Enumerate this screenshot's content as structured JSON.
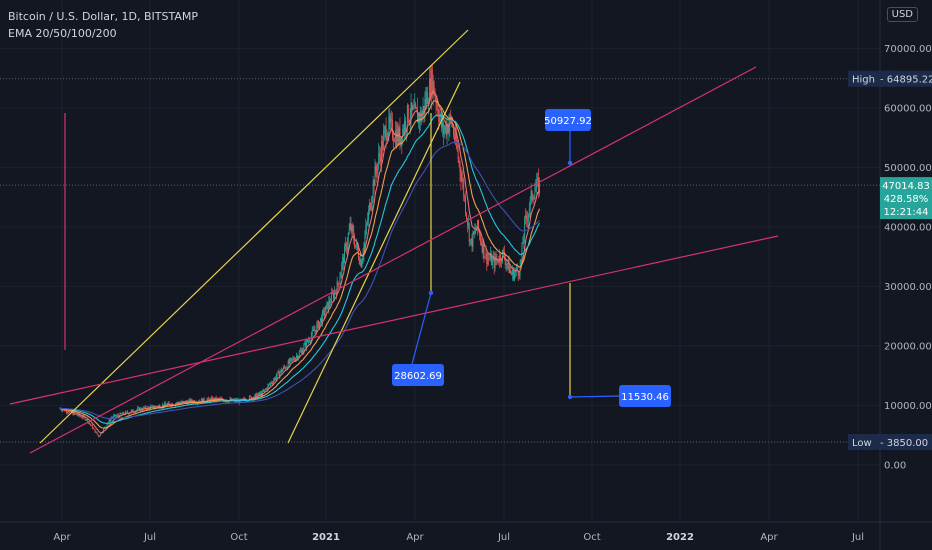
{
  "header": {
    "title": "Bitcoin / U.S. Dollar, 1D, BITSTAMP",
    "indicator": "EMA 20/50/100/200",
    "currency": "USD"
  },
  "colors": {
    "background": "#131722",
    "grid": "#1e222d",
    "text": "#b2b5be",
    "yellow": "#e6d44a",
    "pink": "#d6336c",
    "callout": "#2962ff",
    "price_badge": "#26a69a",
    "high_low_badge": "#1c2b4a",
    "candle_up": "#26a69a",
    "candle_down": "#ef5350"
  },
  "chart_data": {
    "type": "candlestick",
    "price_axis": {
      "min": -5000,
      "max": 75000,
      "ticks": [
        0,
        10000,
        20000,
        30000,
        40000,
        50000,
        60000,
        70000
      ],
      "tick_labels": [
        "0.00",
        "10000.00",
        "20000.00",
        "30000.00",
        "40000.00",
        "50000.00",
        "60000.00",
        "70000.00"
      ]
    },
    "time_axis": {
      "tick_labels": [
        "Apr",
        "Jul",
        "Oct",
        "2021",
        "Apr",
        "Jul",
        "Oct",
        "2022",
        "Apr",
        "Jul"
      ],
      "bold": [
        false,
        false,
        false,
        true,
        false,
        false,
        false,
        true,
        false,
        false
      ]
    },
    "grid": true,
    "high": {
      "label": "High",
      "value": "64895.22",
      "v": 64895
    },
    "low": {
      "label": "Low",
      "value": "3850.00",
      "v": 3850
    },
    "current_price": {
      "value": "47014.83",
      "v": 47015,
      "change": "428.58%",
      "countdown": "12:21:44"
    },
    "annotations": [
      {
        "value": "50927.92"
      },
      {
        "value": "28602.69"
      },
      {
        "value": "11530.46"
      }
    ],
    "series_approx": [
      {
        "t": 0.0,
        "v": 9500
      },
      {
        "t": 0.06,
        "v": 7800
      },
      {
        "t": 0.09,
        "v": 4800
      },
      {
        "t": 0.12,
        "v": 8000
      },
      {
        "t": 0.18,
        "v": 9300
      },
      {
        "t": 0.28,
        "v": 10500
      },
      {
        "t": 0.36,
        "v": 11000
      },
      {
        "t": 0.42,
        "v": 10700
      },
      {
        "t": 0.47,
        "v": 12000
      },
      {
        "t": 0.51,
        "v": 15500
      },
      {
        "t": 0.56,
        "v": 19000
      },
      {
        "t": 0.6,
        "v": 23500
      },
      {
        "t": 0.645,
        "v": 30000
      },
      {
        "t": 0.675,
        "v": 40000
      },
      {
        "t": 0.7,
        "v": 34000
      },
      {
        "t": 0.73,
        "v": 48000
      },
      {
        "t": 0.76,
        "v": 57000
      },
      {
        "t": 0.79,
        "v": 55000
      },
      {
        "t": 0.81,
        "v": 59000
      },
      {
        "t": 0.84,
        "v": 58500
      },
      {
        "t": 0.865,
        "v": 64800
      },
      {
        "t": 0.89,
        "v": 56000
      },
      {
        "t": 0.91,
        "v": 58000
      },
      {
        "t": 0.935,
        "v": 48000
      },
      {
        "t": 0.955,
        "v": 37000
      },
      {
        "t": 0.97,
        "v": 40000
      },
      {
        "t": 0.99,
        "v": 35000
      },
      {
        "t": 1.01,
        "v": 34000
      },
      {
        "t": 1.03,
        "v": 35500
      },
      {
        "t": 1.05,
        "v": 32000
      },
      {
        "t": 1.07,
        "v": 33000
      },
      {
        "t": 1.08,
        "v": 40000
      },
      {
        "t": 1.1,
        "v": 46000
      },
      {
        "t": 1.115,
        "v": 47000
      }
    ]
  }
}
